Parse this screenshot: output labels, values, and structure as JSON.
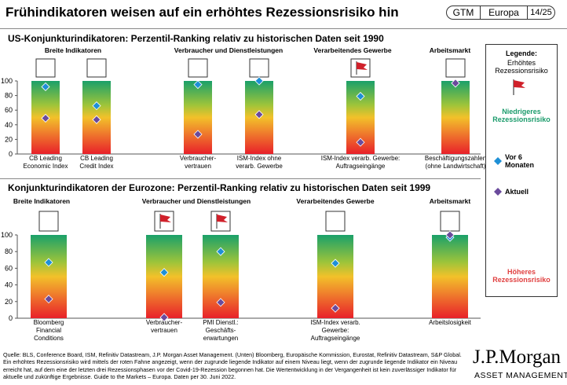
{
  "header": {
    "title": "Frühindikatoren weisen auf ein erhöhtes Rezessionsrisiko hin",
    "tag_gtm": "GTM",
    "tag_region": "Europa",
    "tag_page": "14/25"
  },
  "legend": {
    "title": "Legende:",
    "flag_label": "Erhöhtes Rezessionsrisiko",
    "low_risk": "Niedrigeres Rezessionsrisiko",
    "prior": "Vor 6 Monaten",
    "current": "Aktuell",
    "high_risk": "Höheres Rezessionsrisiko"
  },
  "colors": {
    "prior_marker": "#1e90d6",
    "current_marker": "#6a4a9c",
    "flag": "#d0202a",
    "low_risk_text": "#1a9b6b",
    "high_risk_text": "#e04040"
  },
  "chart_data": [
    {
      "type": "scatter",
      "title": "US-Konjunkturindikatoren: Perzentil-Ranking relativ zu historischen Daten seit 1990",
      "ylim": [
        0,
        100
      ],
      "yticks": [
        0,
        20,
        40,
        60,
        80,
        100
      ],
      "groups": [
        "Breite Indikatoren",
        "Verbraucher und Dienstleistungen",
        "Verarbeitendes Gewerbe",
        "Arbeitsmarkt"
      ],
      "categories": [
        "CB Leading Economic Index",
        "CB Leading Credit Index",
        "Verbraucher-vertrauen",
        "ISM-Index ohne verarb. Gewerbe",
        "ISM-Index verarb. Gewerbe: Auftragseingänge",
        "Beschäftigungszahlen (ohne Landwirtschaft)"
      ],
      "category_labels": [
        [
          "CB Leading",
          "Economic Index"
        ],
        [
          "CB Leading",
          "Credit Index"
        ],
        [
          "Verbraucher-",
          "vertrauen"
        ],
        [
          "ISM-Index ohne",
          "verarb. Gewerbe"
        ],
        [
          "ISM-Index verarb. Gewerbe:",
          "Auftragseingänge"
        ],
        [
          "Beschäftigungszahlen",
          "(ohne Landwirtschaft)"
        ]
      ],
      "series": [
        {
          "name": "Vor 6 Monaten",
          "values": [
            92,
            66,
            95,
            100,
            79,
            97
          ]
        },
        {
          "name": "Aktuell",
          "values": [
            49,
            47,
            27,
            54,
            16,
            97
          ]
        }
      ],
      "flags": [
        false,
        false,
        false,
        false,
        true,
        false
      ]
    },
    {
      "type": "scatter",
      "title": "Konjunkturindikatoren der Eurozone: Perzentil-Ranking relativ zu historischen Daten seit 1999",
      "ylim": [
        0,
        100
      ],
      "yticks": [
        0,
        20,
        40,
        60,
        80,
        100
      ],
      "groups": [
        "Breite Indikatoren",
        "Verbraucher und Dienstleistungen",
        "Verarbeitendes Gewerbe",
        "Arbeitsmarkt"
      ],
      "categories": [
        "Bloomberg Financial Conditions",
        "Verbraucher-vertrauen",
        "PMI Dienstl.: Geschäfts-erwartungen",
        "ISM-Index verarb. Gewerbe: Auftragseingänge",
        "Arbeitslosigkeit"
      ],
      "category_labels": [
        [
          "Bloomberg",
          "Financial",
          "Conditions"
        ],
        [
          "Verbraucher-",
          "vertrauen"
        ],
        [
          "PMI Dienstl.:",
          "Geschäfts-",
          "erwartungen"
        ],
        [
          "ISM-Index verarb.",
          "Gewerbe:",
          "Auftragseingänge"
        ],
        [
          "Arbeitslosigkeit"
        ]
      ],
      "series": [
        {
          "name": "Vor 6 Monaten",
          "values": [
            67,
            55,
            80,
            66,
            97
          ]
        },
        {
          "name": "Aktuell",
          "values": [
            23,
            1,
            19,
            12,
            100
          ]
        }
      ],
      "flags": [
        false,
        true,
        true,
        false,
        false
      ]
    }
  ],
  "footer": {
    "source": "Quelle: BLS, Conference Board, ISM, Refinitiv Datastream, J.P. Morgan Asset Management. (Unten) Bloomberg, Europäische Kommission, Eurostat, Refinitiv Datastream, S&P Global. Ein erhöhtes Rezessionsrisiko wird mittels der roten Fahne angezeigt, wenn der zugrunde liegende Indikator auf einem Niveau liegt, wenn der zugrunde liegende Indikator ein Niveau erreicht hat, auf dem eine der letzten drei Rezessionsphasen vor der Covid-19-Rezession begonnen hat. Die Wertentwicklung in der Vergangenheit ist kein zuverlässiger Indikator für aktuelle und zukünftige Ergebnisse. Guide to the Markets – Europa. Daten per 30. Juni 2022."
  },
  "brand": {
    "logo": "J.P.Morgan",
    "sub": "ASSET MANAGEMENT"
  }
}
